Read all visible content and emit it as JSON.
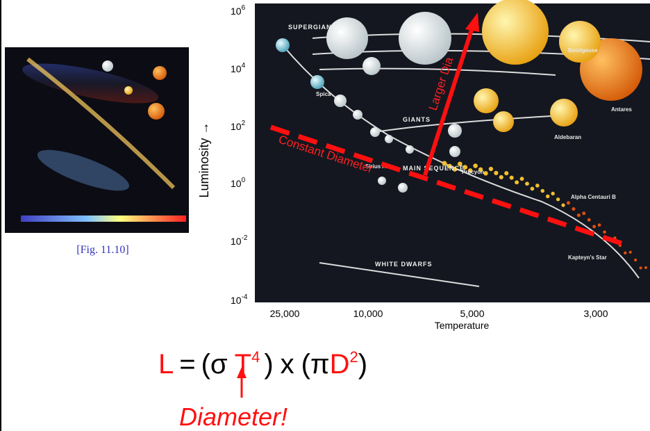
{
  "figure_caption": "[Fig. 11.10]",
  "axes": {
    "y_title": "Luminosity →",
    "x_title": "Temperature",
    "yticks": [
      {
        "base": "10",
        "exp": "6"
      },
      {
        "base": "10",
        "exp": "4"
      },
      {
        "base": "10",
        "exp": "2"
      },
      {
        "base": "10",
        "exp": "0"
      },
      {
        "base": "10",
        "exp": "-2"
      },
      {
        "base": "10",
        "exp": "-4"
      }
    ],
    "xticks": [
      "25,000",
      "10,000",
      "5,000",
      "3,000"
    ]
  },
  "image_labels": {
    "regions": [
      "SUPERGIANTS",
      "GIANTS",
      "MAIN SEQUENCE",
      "WHITE DWARFS"
    ],
    "stars": [
      "Spica",
      "Sirius A",
      "Procyon",
      "Betelgeuse",
      "Antares",
      "Aldebaran",
      "Alpha Centauri B",
      "Kapteyn's Star"
    ]
  },
  "annotations": {
    "constant_diameter": "Constant Diameter",
    "larger_dia": "Larger Dia"
  },
  "equation": [
    "L",
    "=",
    "(σ",
    "T",
    "4",
    ")",
    "x",
    "(π",
    "D",
    "2",
    ")"
  ],
  "diameter_callout": "Diameter!"
}
